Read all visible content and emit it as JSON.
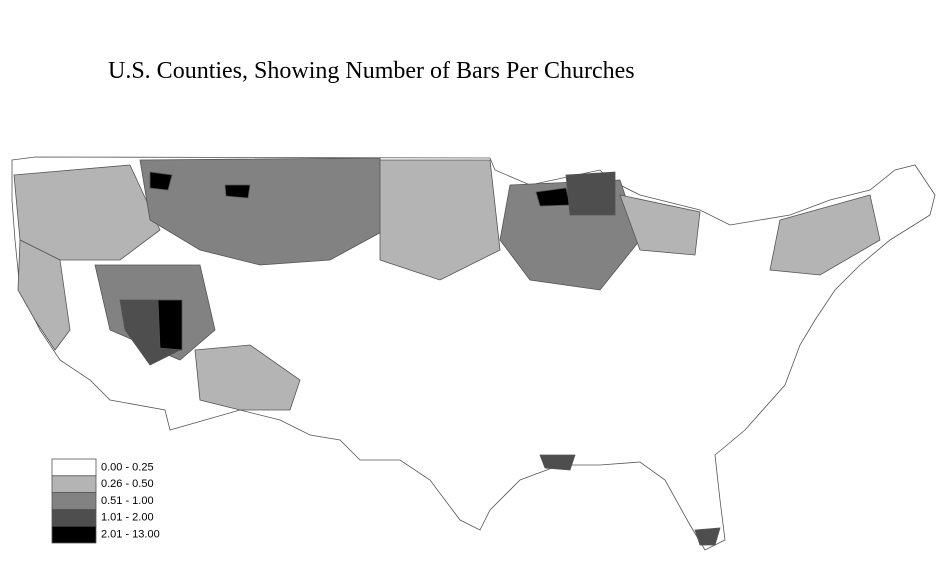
{
  "title": "U.S. Counties, Showing Number of Bars Per Churches",
  "legend": [
    {
      "label": "0.00 - 0.25",
      "color": "#ffffff"
    },
    {
      "label": "0.26 - 0.50",
      "color": "#b4b4b4"
    },
    {
      "label": "0.51 - 1.00",
      "color": "#828282"
    },
    {
      "label": "1.01 - 2.00",
      "color": "#4e4e4e"
    },
    {
      "label": "2.01 - 13.00",
      "color": "#000000"
    }
  ]
}
